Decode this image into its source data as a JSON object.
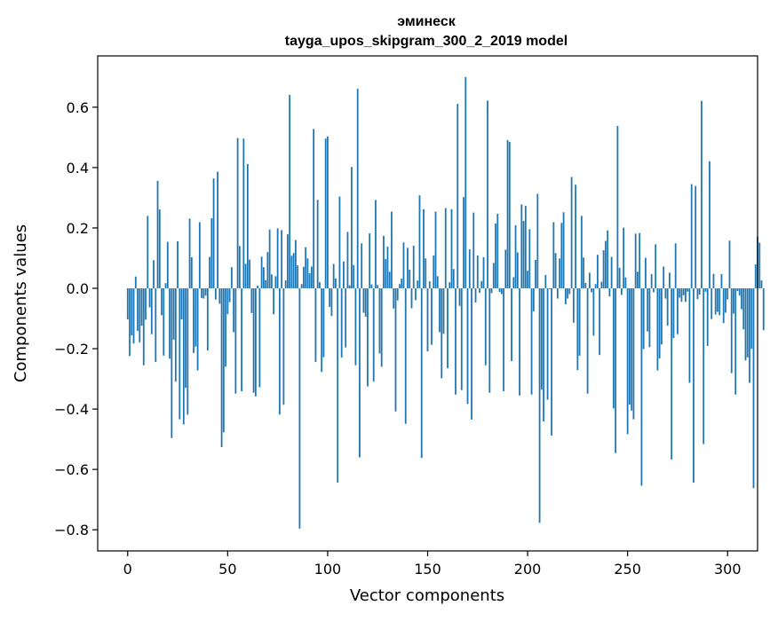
{
  "chart_data": {
    "type": "bar",
    "title_line1": "эминеск",
    "title_line2": "tayga_upos_skipgram_300_2_2019 model",
    "xlabel": "Vector components",
    "ylabel": "Components values",
    "xlim": [
      -15,
      315
    ],
    "ylim": [
      -0.87,
      0.77
    ],
    "xticks": [
      0,
      50,
      100,
      150,
      200,
      250,
      300
    ],
    "yticks": [
      -0.8,
      -0.6,
      -0.4,
      -0.2,
      0.0,
      0.2,
      0.4,
      0.6
    ],
    "ytick_labels": [
      "−0.8",
      "−0.6",
      "−0.4",
      "−0.2",
      "0.0",
      "0.2",
      "0.4",
      "0.6"
    ],
    "xtick_labels": [
      "0",
      "50",
      "100",
      "150",
      "200",
      "250",
      "300"
    ],
    "bar_color": "#1f77b4",
    "grid": false,
    "values": [
      -0.103,
      -0.224,
      -0.156,
      -0.183,
      0.039,
      -0.141,
      -0.179,
      -0.124,
      -0.255,
      -0.104,
      0.24,
      -0.063,
      -0.152,
      0.093,
      -0.244,
      0.356,
      0.261,
      -0.089,
      -0.223,
      0.017,
      0.154,
      -0.233,
      -0.496,
      -0.17,
      -0.309,
      0.156,
      -0.434,
      -0.103,
      -0.451,
      -0.33,
      -0.419,
      0.231,
      0.103,
      -0.214,
      -0.193,
      -0.272,
      0.219,
      -0.032,
      -0.034,
      -0.024,
      -0.206,
      0.104,
      0.232,
      0.364,
      -0.037,
      0.386,
      -0.051,
      -0.526,
      -0.477,
      -0.26,
      -0.086,
      -0.046,
      0.07,
      -0.145,
      -0.349,
      0.498,
      0.14,
      -0.341,
      0.496,
      0.081,
      0.412,
      0.095,
      -0.082,
      -0.346,
      -0.358,
      0.009,
      -0.328,
      0.105,
      0.07,
      0.027,
      0.12,
      0.195,
      0.046,
      -0.086,
      0.04,
      0.199,
      -0.418,
      0.193,
      -0.386,
      0.026,
      0.179,
      0.641,
      0.108,
      0.117,
      0.16,
      0.076,
      -0.796,
      0.014,
      0.071,
      0.136,
      0.099,
      0.05,
      0.072,
      0.528,
      -0.244,
      0.293,
      0.02,
      -0.277,
      -0.228,
      0.496,
      0.503,
      -0.062,
      -0.092,
      0.081,
      0.033,
      -0.644,
      0.304,
      -0.229,
      0.089,
      -0.196,
      0.187,
      0.01,
      0.402,
      0.077,
      -0.255,
      0.661,
      -0.56,
      0.149,
      -0.081,
      -0.094,
      -0.325,
      0.182,
      0.013,
      -0.309,
      0.293,
      0.011,
      -0.216,
      -0.26,
      0.174,
      0.097,
      0.138,
      0.055,
      0.254,
      -0.067,
      -0.408,
      -0.04,
      0.014,
      0.032,
      0.152,
      -0.449,
      0.134,
      0.062,
      -0.066,
      0.141,
      -0.039,
      0.026,
      0.308,
      -0.562,
      0.262,
      0.099,
      -0.209,
      0.023,
      -0.187,
      0.109,
      0.254,
      0.04,
      -0.145,
      -0.298,
      -0.151,
      0.266,
      -0.265,
      0.02,
      0.262,
      0.064,
      -0.352,
      0.611,
      -0.058,
      -0.337,
      0.302,
      0.7,
      -0.383,
      0.129,
      -0.435,
      0.251,
      -0.047,
      0.109,
      -0.015,
      0.024,
      0.103,
      -0.255,
      0.622,
      -0.346,
      -0.016,
      0.084,
      0.215,
      0.247,
      -0.012,
      -0.019,
      -0.341,
      0.128,
      0.491,
      0.485,
      -0.241,
      0.037,
      0.209,
      0.119,
      -0.355,
      0.278,
      0.223,
      0.273,
      0.058,
      0.196,
      -0.352,
      -0.076,
      0.094,
      0.313,
      -0.777,
      -0.336,
      -0.441,
      0.044,
      -0.369,
      -0.003,
      -0.488,
      0.219,
      0.117,
      -0.034,
      0.099,
      0.217,
      0.252,
      -0.053,
      -0.034,
      -0.019,
      0.369,
      -0.114,
      0.343,
      -0.271,
      -0.223,
      0.24,
      0.102,
      0.018,
      -0.349,
      0.052,
      -0.013,
      -0.157,
      0.014,
      0.111,
      -0.221,
      0.022,
      0.126,
      0.157,
      0.192,
      -0.027,
      0.104,
      -0.398,
      -0.546,
      0.538,
      0.068,
      -0.022,
      0.201,
      0.036,
      -0.483,
      -0.385,
      -0.405,
      -0.434,
      0.181,
      0.055,
      0.183,
      -0.654,
      -0.201,
      0.101,
      -0.143,
      -0.195,
      0.047,
      -0.013,
      0.146,
      -0.272,
      -0.232,
      -0.186,
      0.072,
      -0.034,
      -0.124,
      0.052,
      -0.567,
      -0.165,
      0.149,
      -0.152,
      -0.031,
      -0.045,
      -0.023,
      -0.045,
      -0.011,
      -0.313,
      0.345,
      -0.644,
      0.339,
      -0.036,
      -0.021,
      0.621,
      -0.516,
      -0.011,
      -0.191,
      0.421,
      -0.102,
      0.048,
      -0.087,
      -0.078,
      -0.089,
      0.047,
      -0.115,
      -0.081,
      -0.037,
      0.158,
      -0.281,
      -0.084,
      -0.352,
      -0.009,
      -0.024,
      -0.069,
      -0.136,
      -0.239,
      -0.229,
      -0.313,
      -0.201,
      -0.662,
      0.079,
      0.171,
      0.151,
      0.026,
      -0.139
    ]
  }
}
